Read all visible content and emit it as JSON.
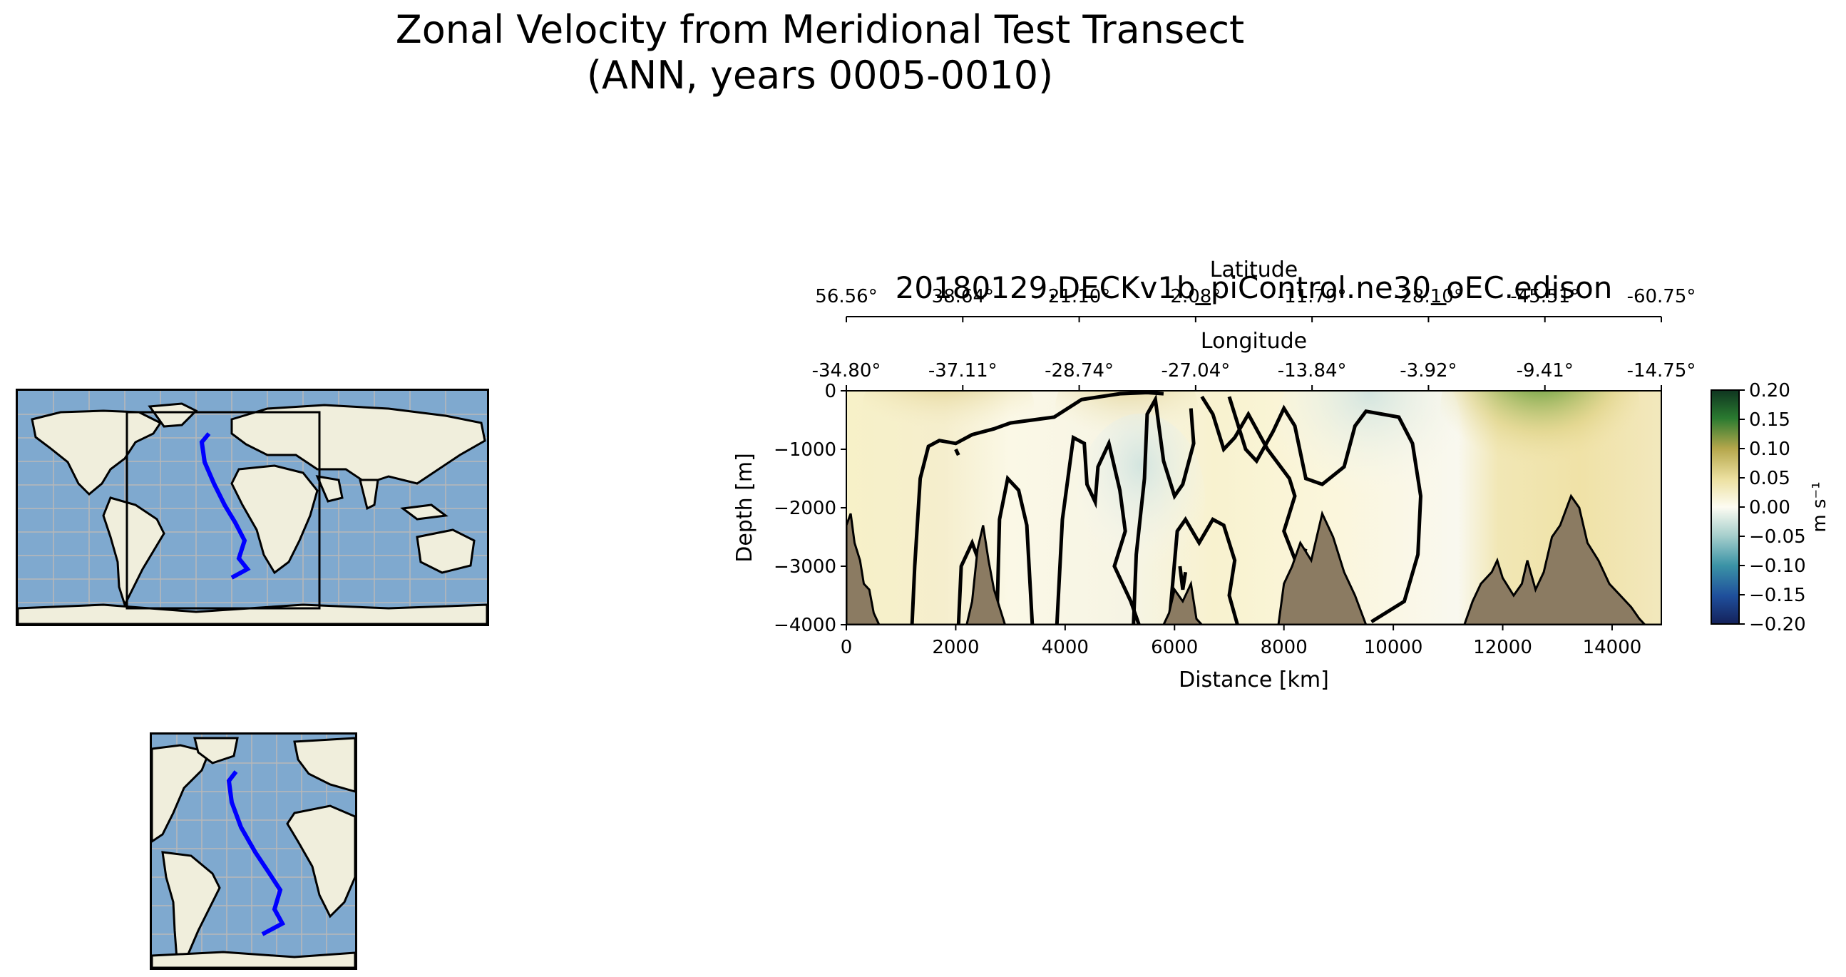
{
  "figure": {
    "title_line1": "Zonal Velocity from Meridional Test Transect",
    "title_line2": "(ANN, years 0005-0010)"
  },
  "maps": {
    "global_label": "global-map-inset",
    "regional_label": "regional-map-inset"
  },
  "colors": {
    "land": "#f0eedc",
    "ocean": "#7fa9cf",
    "transect": "#0000ff",
    "bathymetry": "#8b7b62",
    "contour": "#000000"
  },
  "chart_data": {
    "type": "heatmap",
    "title": "20180129.DECKv1b_piControl.ne30_oEC.edison",
    "xlabel": "Distance [km]",
    "ylabel": "Depth [m]",
    "xlim": [
      0,
      14900
    ],
    "ylim": [
      -4000,
      0
    ],
    "x_ticks": [
      0,
      2000,
      4000,
      6000,
      8000,
      10000,
      12000,
      14000
    ],
    "x_tick_labels": [
      "0",
      "2000",
      "4000",
      "6000",
      "8000",
      "10000",
      "12000",
      "14000"
    ],
    "y_ticks": [
      0,
      -1000,
      -2000,
      -3000,
      -4000
    ],
    "y_tick_labels": [
      "0",
      "−1000",
      "−2000",
      "−3000",
      "−4000"
    ],
    "secondary_axes": {
      "longitude": {
        "label": "Longitude",
        "tick_labels": [
          "-34.80°",
          "-37.11°",
          "-28.74°",
          "-27.04°",
          "-13.84°",
          "-3.92°",
          "-9.41°",
          "-14.75°"
        ]
      },
      "latitude": {
        "label": "Latitude",
        "tick_labels": [
          "56.56°",
          "38.64°",
          "21.10°",
          "2.08°",
          "-11.79°",
          "-28.10°",
          "-45.51°",
          "-60.75°"
        ]
      }
    },
    "colorbar": {
      "label": "m s⁻¹",
      "range": [
        -0.2,
        0.2
      ],
      "ticks": [
        0.2,
        0.15,
        0.1,
        0.05,
        0.0,
        -0.05,
        -0.1,
        -0.15,
        -0.2
      ],
      "tick_labels": [
        "0.20",
        "0.15",
        "0.10",
        "0.05",
        "0.00",
        "−0.05",
        "−0.10",
        "−0.15",
        "−0.20"
      ],
      "colormap": "delta-like (navy → teal → white → khaki → dark green)"
    },
    "contour_levels": [
      0.0
    ],
    "notes": "Zonal velocity section along a meridional transect from ~56.6N to ~60.8S; mostly weak positive flow (light yellow), strongest positive (~0.15-0.2 m/s) near surface around 12800-13200 km."
  }
}
